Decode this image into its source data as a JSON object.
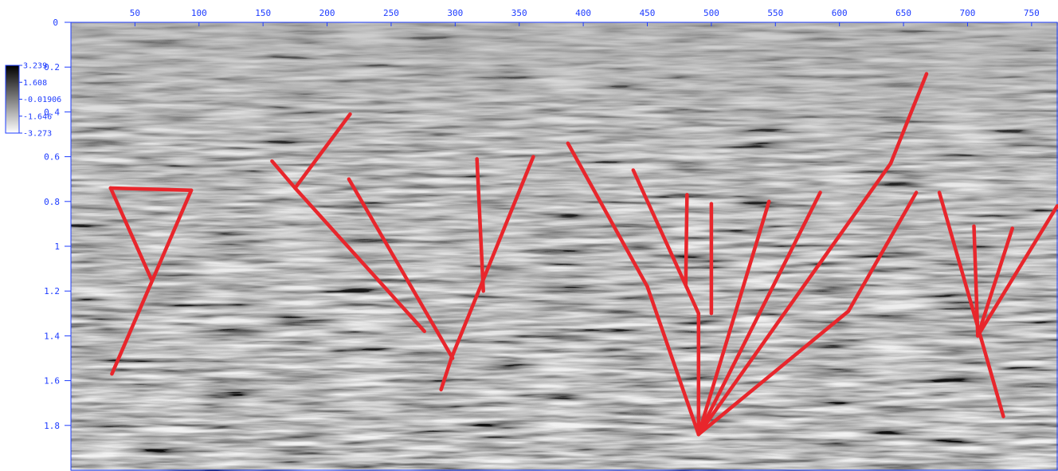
{
  "x_axis": {
    "ticks": [
      "50",
      "100",
      "150",
      "200",
      "250",
      "300",
      "350",
      "400",
      "450",
      "500",
      "550",
      "600",
      "650",
      "700",
      "750"
    ],
    "range": [
      0,
      770
    ]
  },
  "y_axis": {
    "top_label": "0",
    "ticks": [
      "0.2",
      "0.4",
      "0.6",
      "0.8",
      "1",
      "1.2",
      "1.4",
      "1.6",
      "1.8"
    ],
    "range": [
      0,
      2.0
    ]
  },
  "colorbar": {
    "labels": [
      "3.239",
      "1.608",
      "-0.01906",
      "-1.646",
      "-3.273"
    ],
    "colors": [
      "#000000",
      "#ffffff"
    ]
  },
  "overlay": {
    "line_color": "#e8262c",
    "fault_segments": [
      [
        [
          31,
          0.74
        ],
        [
          94,
          0.75
        ]
      ],
      [
        [
          31,
          0.74
        ],
        [
          63,
          1.15
        ]
      ],
      [
        [
          94,
          0.75
        ],
        [
          32,
          1.57
        ]
      ],
      [
        [
          175,
          0.74
        ],
        [
          218,
          0.41
        ]
      ],
      [
        [
          157,
          0.62
        ],
        [
          175,
          0.74
        ]
      ],
      [
        [
          175,
          0.74
        ],
        [
          276,
          1.38
        ]
      ],
      [
        [
          217,
          0.7
        ],
        [
          298,
          1.5
        ]
      ],
      [
        [
          317,
          0.61
        ],
        [
          322,
          1.2
        ]
      ],
      [
        [
          361,
          0.6
        ],
        [
          297,
          1.5
        ]
      ],
      [
        [
          297,
          1.5
        ],
        [
          289,
          1.64
        ]
      ],
      [
        [
          388,
          0.54
        ],
        [
          450,
          1.18
        ]
      ],
      [
        [
          450,
          1.18
        ],
        [
          490,
          1.84
        ]
      ],
      [
        [
          439,
          0.66
        ],
        [
          490,
          1.3
        ]
      ],
      [
        [
          490,
          1.3
        ],
        [
          490,
          1.84
        ]
      ],
      [
        [
          481,
          0.77
        ],
        [
          480,
          1.17
        ]
      ],
      [
        [
          500,
          0.81
        ],
        [
          500,
          1.3
        ]
      ],
      [
        [
          545,
          0.8
        ],
        [
          490,
          1.84
        ]
      ],
      [
        [
          585,
          0.76
        ],
        [
          490,
          1.84
        ]
      ],
      [
        [
          668,
          0.23
        ],
        [
          640,
          0.63
        ]
      ],
      [
        [
          640,
          0.63
        ],
        [
          490,
          1.84
        ]
      ],
      [
        [
          660,
          0.76
        ],
        [
          630,
          1.06
        ]
      ],
      [
        [
          630,
          1.06
        ],
        [
          607,
          1.29
        ]
      ],
      [
        [
          607,
          1.29
        ],
        [
          490,
          1.84
        ]
      ],
      [
        [
          678,
          0.76
        ],
        [
          728,
          1.76
        ]
      ],
      [
        [
          705,
          0.91
        ],
        [
          708,
          1.4
        ]
      ],
      [
        [
          735,
          0.92
        ],
        [
          708,
          1.4
        ]
      ],
      [
        [
          770,
          0.82
        ],
        [
          708,
          1.4
        ]
      ]
    ]
  }
}
